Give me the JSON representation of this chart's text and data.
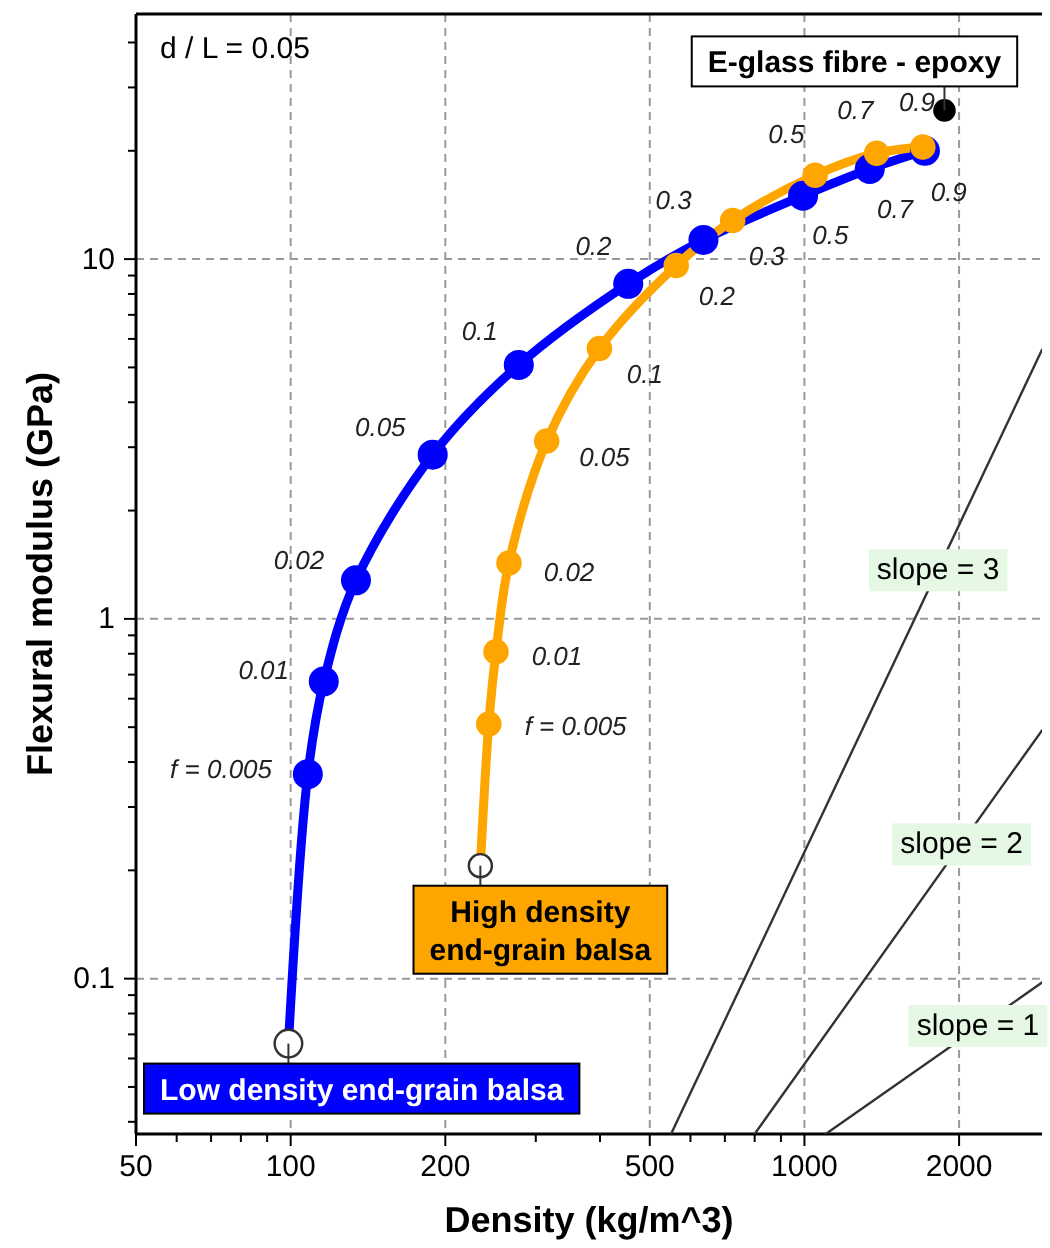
{
  "chart_data": {
    "type": "line",
    "xlabel": "Density (kg/m^3)",
    "ylabel": "Flexural modulus (GPa)",
    "log": "xy",
    "grid": true,
    "legend": "bottom left",
    "xlim": [
      50,
      2900
    ],
    "ylim": [
      0.037,
      48
    ],
    "xticks": [
      50,
      {
        "value": 60,
        "label": null
      },
      {
        "value": 70,
        "label": null
      },
      {
        "value": 80,
        "label": null
      },
      {
        "value": 90,
        "label": null
      },
      100,
      200,
      {
        "value": 300,
        "label": null
      },
      {
        "value": 400,
        "label": null
      },
      500,
      {
        "value": 600,
        "label": null
      },
      {
        "value": 700,
        "label": null
      },
      {
        "value": 800,
        "label": null
      },
      {
        "value": 900,
        "label": null
      },
      1000,
      2000
    ],
    "yticks": [
      {
        "value": 0.04,
        "label": null
      },
      {
        "value": 0.05,
        "label": null
      },
      {
        "value": 0.06,
        "label": null
      },
      {
        "value": 0.07,
        "label": null
      },
      {
        "value": 0.08,
        "label": null
      },
      {
        "value": 0.09,
        "label": null
      },
      0.1,
      {
        "value": 0.2,
        "label": null
      },
      {
        "value": 0.3,
        "label": null
      },
      {
        "value": 0.4,
        "label": null
      },
      {
        "value": 0.5,
        "label": null
      },
      {
        "value": 0.6,
        "label": null
      },
      {
        "value": 0.7,
        "label": null
      },
      {
        "value": 0.8,
        "label": null
      },
      {
        "value": 0.9,
        "label": null
      },
      1,
      {
        "value": 2,
        "label": null
      },
      {
        "value": 3,
        "label": null
      },
      {
        "value": 4,
        "label": null
      },
      {
        "value": 5,
        "label": null
      },
      {
        "value": 6,
        "label": null
      },
      {
        "value": 7,
        "label": null
      },
      {
        "value": 8,
        "label": null
      },
      {
        "value": 9,
        "label": null
      },
      10,
      {
        "value": 20,
        "label": null
      },
      {
        "value": 30,
        "label": null
      },
      {
        "value": 40,
        "label": null
      }
    ],
    "series": [
      {
        "type": "line",
        "name": "slope = 3",
        "color": "#333333",
        "marker": "none",
        "x": [
          550,
          2900
        ],
        "values": [
          0.037,
          5.6
        ]
      },
      {
        "type": "line",
        "name": "slope = 2",
        "color": "#333333",
        "marker": "none",
        "x": [
          800,
          2900
        ],
        "values": [
          0.037,
          0.49
        ]
      },
      {
        "type": "line",
        "name": "slope = 1",
        "color": "#333333",
        "marker": "none",
        "x": [
          1100,
          2900
        ],
        "values": [
          0.037,
          0.0975
        ]
      },
      {
        "name": "Low density end-grain balsa",
        "color": "#0000ff",
        "marker": "circle",
        "colors": [
          "#ffffff",
          "#0000ff",
          "#0000ff",
          "#0000ff",
          "#0000ff",
          "#0000ff",
          "#0000ff",
          "#0000ff",
          "#0000ff",
          "#0000ff",
          "#0000ff"
        ],
        "x": [
          99,
          108,
          116,
          134,
          189,
          278,
          454,
          636,
          994,
          1340,
          1716
        ],
        "values": [
          0.066,
          0.37,
          0.67,
          1.28,
          2.86,
          5.08,
          8.54,
          11.3,
          15.0,
          17.8,
          20.0
        ]
      },
      {
        "name": "High density end-grain balsa",
        "color": "#ffa500",
        "marker": "circle",
        "colors": [
          "#ffffff",
          "#ffa500",
          "#ffa500",
          "#ffa500",
          "#ffa500",
          "#ffa500",
          "#ffa500",
          "#ffa500",
          "#ffa500",
          "#ffa500",
          "#ffa500"
        ],
        "x": [
          234,
          243,
          251,
          266,
          315,
          399,
          563,
          725,
          1049,
          1382,
          1700
        ],
        "values": [
          0.206,
          0.51,
          0.81,
          1.43,
          3.12,
          5.64,
          9.6,
          12.8,
          17.1,
          19.7,
          20.5
        ]
      },
      {
        "type": "scatter",
        "name": "E-glass fibre - epoxy",
        "color": "#000000",
        "marker": "circle",
        "x": [
          1873
        ],
        "values": [
          25.9
        ]
      }
    ],
    "annotations": [
      "d / L = 0.05",
      {
        "text": "f = 0.005",
        "x": 108,
        "y": 0.37
      },
      {
        "text": "0.01",
        "x": 116,
        "y": 0.67
      },
      {
        "text": "0.02",
        "x": 134,
        "y": 1.28
      },
      {
        "text": "0.05",
        "x": 189,
        "y": 2.86
      },
      {
        "text": "0.1",
        "x": 278,
        "y": 5.08
      },
      {
        "text": "0.2",
        "x": 454,
        "y": 8.54
      },
      {
        "text": "0.3",
        "x": 636,
        "y": 11.3
      },
      {
        "text": "0.5",
        "x": 994,
        "y": 15.0
      },
      {
        "text": "0.7",
        "x": 1340,
        "y": 17.8
      },
      {
        "text": "0.9",
        "x": 1716,
        "y": 20.0
      },
      {
        "text": "f = 0.005",
        "x": 243,
        "y": 0.51
      },
      {
        "text": "0.01",
        "x": 251,
        "y": 0.81
      },
      {
        "text": "0.02",
        "x": 266,
        "y": 1.43
      },
      {
        "text": "0.05",
        "x": 315,
        "y": 3.12
      },
      {
        "text": "0.1",
        "x": 399,
        "y": 5.64
      },
      {
        "text": "0.2",
        "x": 563,
        "y": 9.6
      },
      {
        "text": "0.3",
        "x": 725,
        "y": 12.8
      },
      {
        "text": "0.5",
        "x": 1049,
        "y": 17.1
      },
      {
        "text": "0.7",
        "x": 1382,
        "y": 19.7
      },
      {
        "text": "0.9",
        "x": 1700,
        "y": 20.5
      }
    ]
  }
}
